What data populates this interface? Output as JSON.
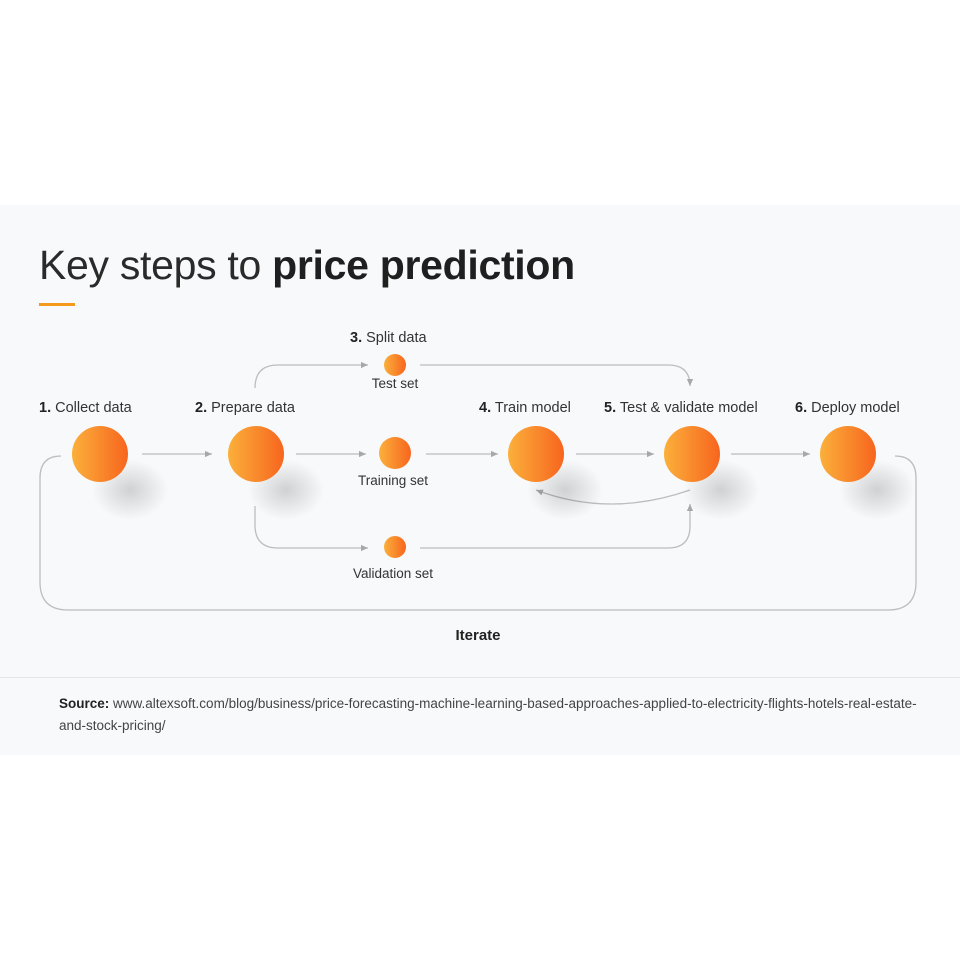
{
  "title": {
    "light": "Key steps to",
    "bold": "price prediction"
  },
  "steps": [
    {
      "num": "1.",
      "label": "Collect data"
    },
    {
      "num": "2.",
      "label": "Prepare data"
    },
    {
      "num": "3.",
      "label": "Split data"
    },
    {
      "num": "4.",
      "label": "Train model"
    },
    {
      "num": "5.",
      "label": "Test & validate model"
    },
    {
      "num": "6.",
      "label": "Deploy model"
    }
  ],
  "sets": {
    "test": "Test set",
    "training": "Training set",
    "validation": "Validation set"
  },
  "loop_label": "Iterate",
  "source": {
    "label": "Source:",
    "url": "www.altexsoft.com/blog/business/price-forecasting-machine-learning-based-approaches-applied-to-electricity-flights-hotels-real-estate-and-stock-pricing/"
  },
  "colors": {
    "accent": "#f39a1c",
    "circle_start": "#fbb03b",
    "circle_end": "#f7651e",
    "connector": "#b8b8b8"
  }
}
